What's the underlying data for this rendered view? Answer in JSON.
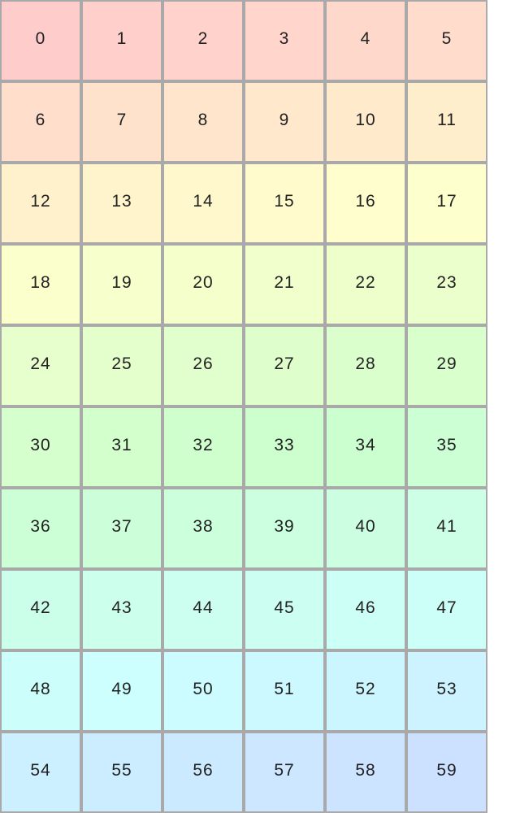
{
  "grid": {
    "columns": 6,
    "cells": [
      "0",
      "1",
      "2",
      "3",
      "4",
      "5",
      "6",
      "7",
      "8",
      "9",
      "10",
      "11",
      "12",
      "13",
      "14",
      "15",
      "16",
      "17",
      "18",
      "19",
      "20",
      "21",
      "22",
      "23",
      "24",
      "25",
      "26",
      "27",
      "28",
      "29",
      "30",
      "31",
      "32",
      "33",
      "34",
      "35",
      "36",
      "37",
      "38",
      "39",
      "40",
      "41",
      "42",
      "43",
      "44",
      "45",
      "46",
      "47",
      "48",
      "49",
      "50",
      "51",
      "52",
      "53",
      "54",
      "55",
      "56",
      "57",
      "58",
      "59"
    ],
    "border_color": "#a9a9a9",
    "first_color": "#ffcccc",
    "last_color": "#cce0ff"
  }
}
